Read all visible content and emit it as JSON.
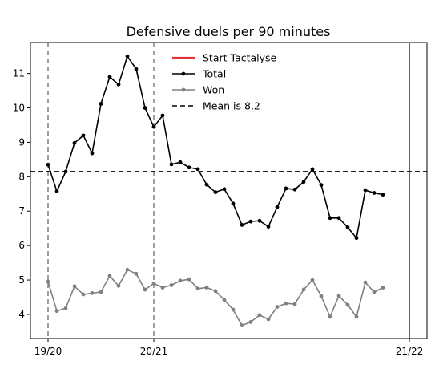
{
  "chart_data": {
    "type": "line",
    "title": "Defensive duels per 90 minutes",
    "xlabel": "",
    "ylabel": "",
    "x_tick_labels": [
      {
        "label": "19/20",
        "x": 0
      },
      {
        "label": "20/21",
        "x": 12
      },
      {
        "label": "21/22",
        "x": 41
      }
    ],
    "xlim": [
      -2,
      43
    ],
    "ylim": [
      3.3,
      11.9
    ],
    "y_ticks": [
      4,
      5,
      6,
      7,
      8,
      9,
      10,
      11
    ],
    "grid": false,
    "legend_position": "top-center",
    "vertical_markers": [
      {
        "x": 0,
        "style": "dashed",
        "color": "#808080"
      },
      {
        "x": 12,
        "style": "dashed",
        "color": "#808080"
      },
      {
        "x": 41,
        "style": "dashed",
        "color": "#808080"
      }
    ],
    "series": [
      {
        "name": "Start Tactalyse",
        "kind": "vline",
        "x": 41,
        "color": "#e0333a"
      },
      {
        "name": "Total",
        "kind": "line",
        "color": "#000000",
        "x": [
          0,
          1,
          2,
          3,
          4,
          5,
          6,
          7,
          8,
          9,
          10,
          11,
          12,
          13,
          14,
          15,
          16,
          17,
          18,
          19,
          20,
          21,
          22,
          23,
          24,
          25,
          26,
          27,
          28,
          29,
          30,
          31,
          32,
          33,
          34,
          35,
          36,
          37,
          38
        ],
        "values": [
          8.35,
          7.58,
          8.15,
          8.98,
          9.2,
          8.68,
          10.12,
          10.9,
          10.68,
          11.5,
          11.13,
          10.0,
          9.45,
          9.78,
          8.36,
          8.42,
          8.27,
          8.22,
          7.77,
          7.55,
          7.64,
          7.22,
          6.6,
          6.7,
          6.72,
          6.55,
          7.12,
          7.66,
          7.63,
          7.85,
          8.22,
          7.76,
          6.8,
          6.8,
          6.53,
          6.22,
          7.61,
          7.53,
          7.48
        ]
      },
      {
        "name": "Won",
        "kind": "line",
        "color": "#808080",
        "x": [
          0,
          1,
          2,
          3,
          4,
          5,
          6,
          7,
          8,
          9,
          10,
          11,
          12,
          13,
          14,
          15,
          16,
          17,
          18,
          19,
          20,
          21,
          22,
          23,
          24,
          25,
          26,
          27,
          28,
          29,
          30,
          31,
          32,
          33,
          34,
          35,
          36,
          37,
          38
        ],
        "values": [
          4.95,
          4.1,
          4.18,
          4.82,
          4.58,
          4.62,
          4.65,
          5.12,
          4.83,
          5.3,
          5.18,
          4.72,
          4.9,
          4.78,
          4.85,
          4.98,
          5.02,
          4.75,
          4.78,
          4.68,
          4.42,
          4.14,
          3.68,
          3.78,
          3.98,
          3.86,
          4.22,
          4.32,
          4.3,
          4.72,
          5.0,
          4.53,
          3.93,
          4.54,
          4.28,
          3.93,
          4.93,
          4.65,
          4.78
        ]
      },
      {
        "name": "Mean is 8.2",
        "kind": "hline",
        "y": 8.15,
        "style": "dashed",
        "color": "#000000"
      }
    ]
  }
}
